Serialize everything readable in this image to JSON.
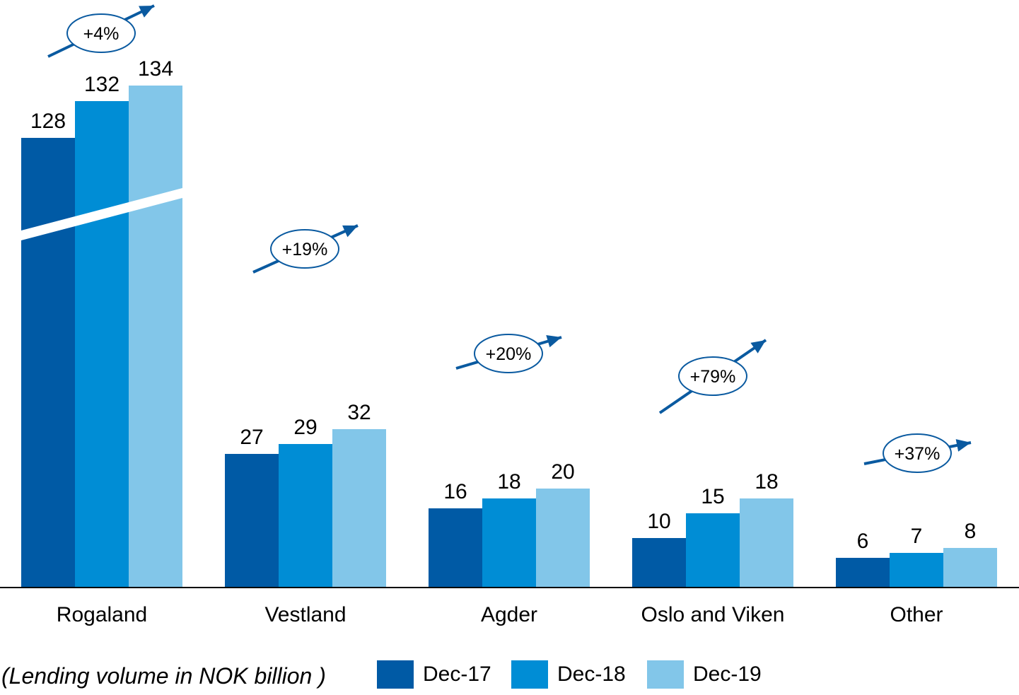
{
  "chart_data": {
    "type": "bar",
    "categories": [
      "Rogaland",
      "Vestland",
      "Agder",
      "Oslo and Viken",
      "Other"
    ],
    "series": [
      {
        "name": "Dec-17",
        "color": "#005aa5",
        "values": [
          128,
          27,
          16,
          10,
          6
        ]
      },
      {
        "name": "Dec-18",
        "color": "#008dd5",
        "values": [
          132,
          29,
          18,
          15,
          7
        ]
      },
      {
        "name": "Dec-19",
        "color": "#82c6e9",
        "values": [
          134,
          32,
          20,
          18,
          8
        ]
      }
    ],
    "growth_labels": [
      "+4%",
      "+19%",
      "+20%",
      "+79%",
      "+37%"
    ],
    "axis_break": {
      "category": "Rogaland"
    },
    "arrow_color": "#0a5aa0",
    "title": "",
    "xlabel": "",
    "ylabel": "",
    "grid": false,
    "legend_position": "bottom"
  },
  "footnote": "(Lending volume in NOK billion )"
}
